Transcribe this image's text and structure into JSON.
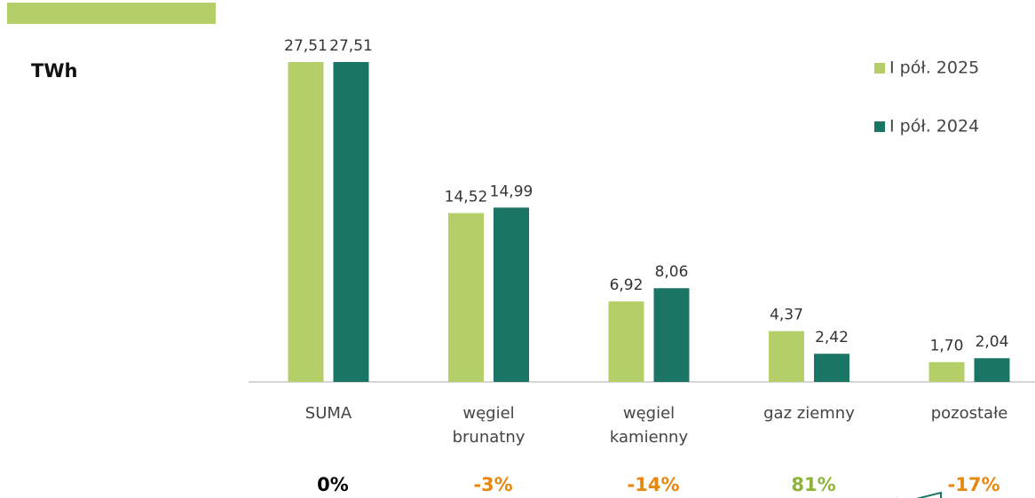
{
  "chart_data": {
    "type": "bar",
    "unit": "TWh",
    "categories": [
      [
        "SUMA"
      ],
      [
        "węgiel",
        "brunatny"
      ],
      [
        "węgiel",
        "kamienny"
      ],
      [
        "gaz ziemny"
      ],
      [
        "pozostałe"
      ]
    ],
    "series": [
      {
        "name": "I pół. 2025",
        "color": "#b5cf68",
        "values": [
          27.51,
          14.52,
          6.92,
          4.37,
          1.7
        ],
        "value_labels": [
          "27,51",
          "14,52",
          "6,92",
          "4,37",
          "1,70"
        ]
      },
      {
        "name": "I pół. 2024",
        "color": "#1b7565",
        "values": [
          27.51,
          14.99,
          8.06,
          2.42,
          2.04
        ],
        "value_labels": [
          "27,51",
          "14,99",
          "8,06",
          "2,42",
          "2,04"
        ]
      }
    ],
    "annotations": [
      {
        "text": "0%",
        "color": "#000000"
      },
      {
        "text": "-3%",
        "color": "#e8870e"
      },
      {
        "text": "-14%",
        "color": "#e8870e"
      },
      {
        "text": "81%",
        "color": "#8db33a"
      },
      {
        "text": "-17%",
        "color": "#e8870e"
      }
    ],
    "legend": "top-right"
  }
}
